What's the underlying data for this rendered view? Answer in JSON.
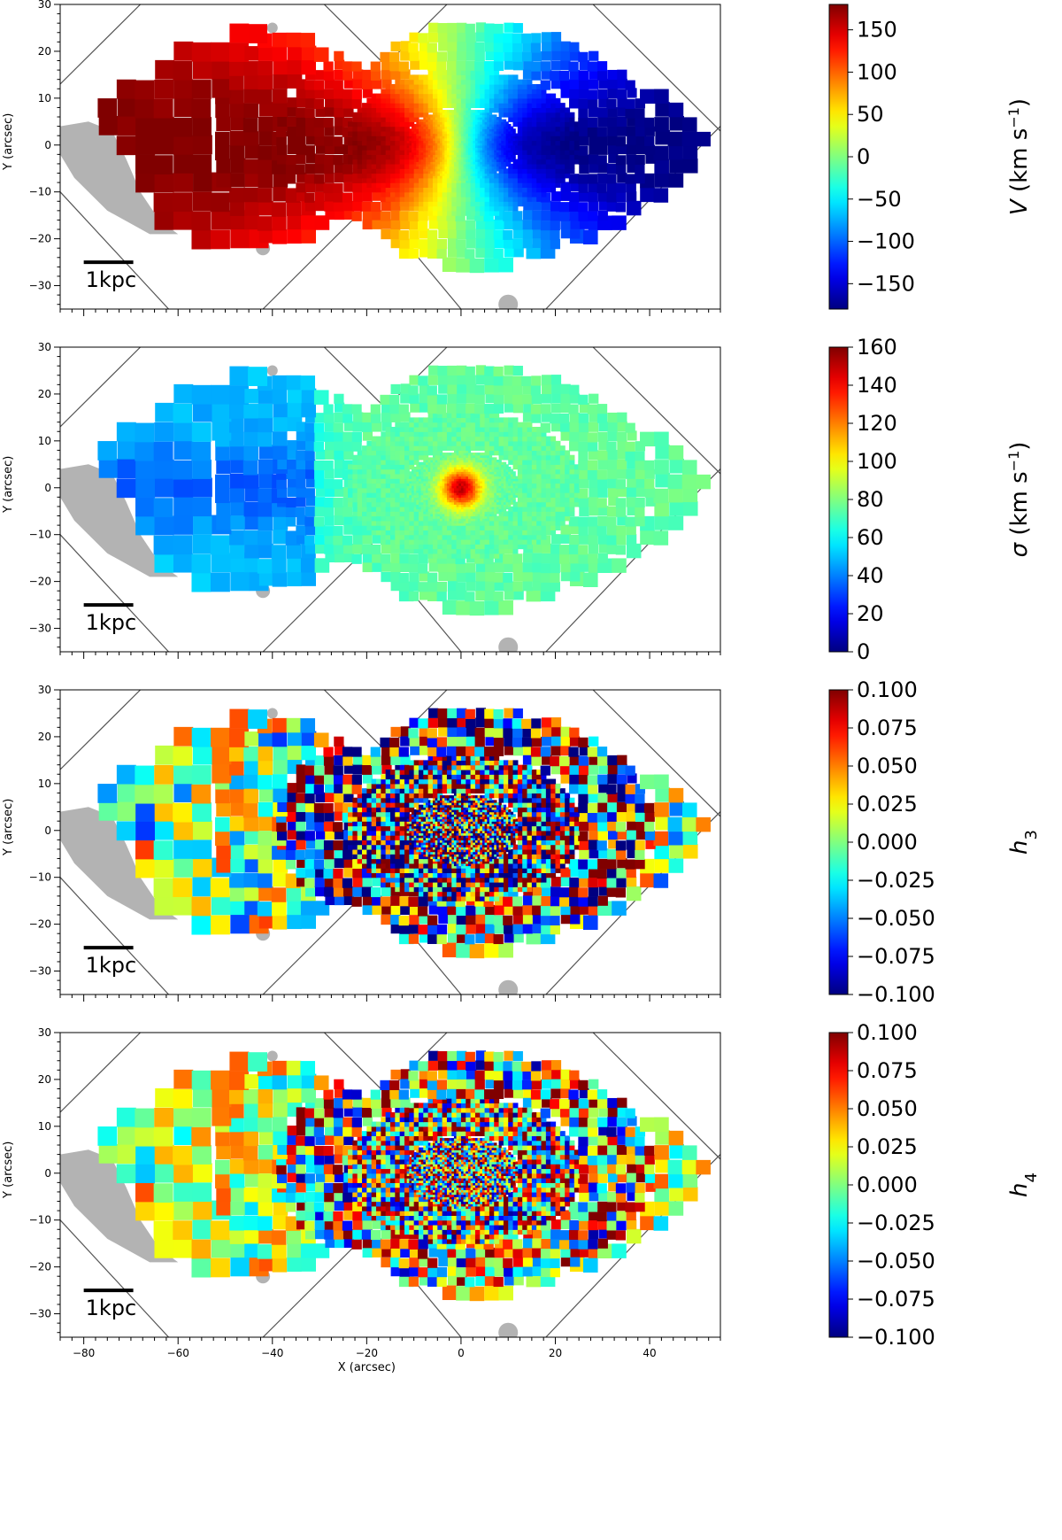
{
  "chart_data": [
    {
      "type": "heatmap",
      "panel": "V",
      "title": "",
      "xlabel": "",
      "ylabel": "Y (arcsec)",
      "xlim": [
        -85,
        55
      ],
      "ylim": [
        -35,
        30
      ],
      "xticks": [
        -80,
        -60,
        -40,
        -20,
        0,
        20,
        40
      ],
      "xtick_labels": [
        "",
        "",
        "",
        "",
        "",
        "",
        ""
      ],
      "yticks": [
        -30,
        -20,
        -10,
        0,
        10,
        20,
        30
      ],
      "ytick_labels": [
        "−30",
        "−20",
        "−10",
        "0",
        "10",
        "20",
        "30"
      ],
      "colorbar": {
        "label_prefix": "V",
        "label_unit": "(km s",
        "label_exp": "−1",
        "label_suffix": ")",
        "vmin": -180,
        "vmax": 180,
        "ticks": [
          150,
          100,
          50,
          0,
          -50,
          -100,
          -150
        ],
        "tick_labels": [
          "150",
          "100",
          "50",
          "0",
          "−50",
          "−100",
          "−150"
        ],
        "colormap": "jet"
      },
      "field": {
        "kind": "rotation",
        "amplitude": 180,
        "center_peak": 0,
        "noise": 0.05
      },
      "scale_bar": {
        "label": "1kpc",
        "length_arcsec": 10.5
      },
      "masked_color": "#b3b3b3"
    },
    {
      "type": "heatmap",
      "panel": "sigma",
      "title": "",
      "xlabel": "",
      "ylabel": "Y (arcsec)",
      "xlim": [
        -85,
        55
      ],
      "ylim": [
        -35,
        30
      ],
      "xticks": [
        -80,
        -60,
        -40,
        -20,
        0,
        20,
        40
      ],
      "xtick_labels": [
        "",
        "",
        "",
        "",
        "",
        "",
        ""
      ],
      "yticks": [
        -30,
        -20,
        -10,
        0,
        10,
        20,
        30
      ],
      "ytick_labels": [
        "−30",
        "−20",
        "−10",
        "0",
        "10",
        "20",
        "30"
      ],
      "colorbar": {
        "label_prefix": "σ",
        "label_unit": "(km s",
        "label_exp": "−1",
        "label_suffix": ")",
        "vmin": 0,
        "vmax": 160,
        "ticks": [
          160,
          140,
          120,
          100,
          80,
          60,
          40,
          20,
          0
        ],
        "tick_labels": [
          "160",
          "140",
          "120",
          "100",
          "80",
          "60",
          "40",
          "20",
          "0"
        ],
        "colormap": "jet"
      },
      "field": {
        "kind": "dispersion",
        "outer_value": 45,
        "disk_value": 75,
        "center_peak": 150,
        "noise": 0.06
      },
      "scale_bar": {
        "label": "1kpc",
        "length_arcsec": 10.5
      },
      "masked_color": "#b3b3b3"
    },
    {
      "type": "heatmap",
      "panel": "h3",
      "title": "",
      "xlabel": "",
      "ylabel": "Y (arcsec)",
      "xlim": [
        -85,
        55
      ],
      "ylim": [
        -35,
        30
      ],
      "xticks": [
        -80,
        -60,
        -40,
        -20,
        0,
        20,
        40
      ],
      "xtick_labels": [
        "",
        "",
        "",
        "",
        "",
        "",
        ""
      ],
      "yticks": [
        -30,
        -20,
        -10,
        0,
        10,
        20,
        30
      ],
      "ytick_labels": [
        "−30",
        "−20",
        "−10",
        "0",
        "10",
        "20",
        "30"
      ],
      "colorbar": {
        "label_prefix": "h",
        "label_sub": "3",
        "vmin": -0.1,
        "vmax": 0.1,
        "ticks": [
          0.1,
          0.075,
          0.05,
          0.025,
          0.0,
          -0.025,
          -0.05,
          -0.075,
          -0.1
        ],
        "tick_labels": [
          "0.100",
          "0.075",
          "0.050",
          "0.025",
          "0.000",
          "−0.025",
          "−0.050",
          "−0.075",
          "−0.100"
        ],
        "colormap": "jet"
      },
      "field": {
        "kind": "noise",
        "mean": 0.0,
        "spread": 0.06
      },
      "scale_bar": {
        "label": "1kpc",
        "length_arcsec": 10.5
      },
      "masked_color": "#b3b3b3"
    },
    {
      "type": "heatmap",
      "panel": "h4",
      "title": "",
      "xlabel": "X (arcsec)",
      "ylabel": "Y (arcsec)",
      "xlim": [
        -85,
        55
      ],
      "ylim": [
        -35,
        30
      ],
      "xticks": [
        -80,
        -60,
        -40,
        -20,
        0,
        20,
        40
      ],
      "xtick_labels": [
        "−80",
        "−60",
        "−40",
        "−20",
        "0",
        "20",
        "40"
      ],
      "yticks": [
        -30,
        -20,
        -10,
        0,
        10,
        20,
        30
      ],
      "ytick_labels": [
        "−30",
        "−20",
        "−10",
        "0",
        "10",
        "20",
        "30"
      ],
      "colorbar": {
        "label_prefix": "h",
        "label_sub": "4",
        "vmin": -0.1,
        "vmax": 0.1,
        "ticks": [
          0.1,
          0.075,
          0.05,
          0.025,
          0.0,
          -0.025,
          -0.05,
          -0.075,
          -0.1
        ],
        "tick_labels": [
          "0.100",
          "0.075",
          "0.050",
          "0.025",
          "0.000",
          "−0.025",
          "−0.050",
          "−0.075",
          "−0.100"
        ],
        "colormap": "jet"
      },
      "field": {
        "kind": "noise",
        "mean": 0.012,
        "spread": 0.045
      },
      "scale_bar": {
        "label": "1kpc",
        "length_arcsec": 10.5
      },
      "masked_color": "#b3b3b3"
    }
  ]
}
